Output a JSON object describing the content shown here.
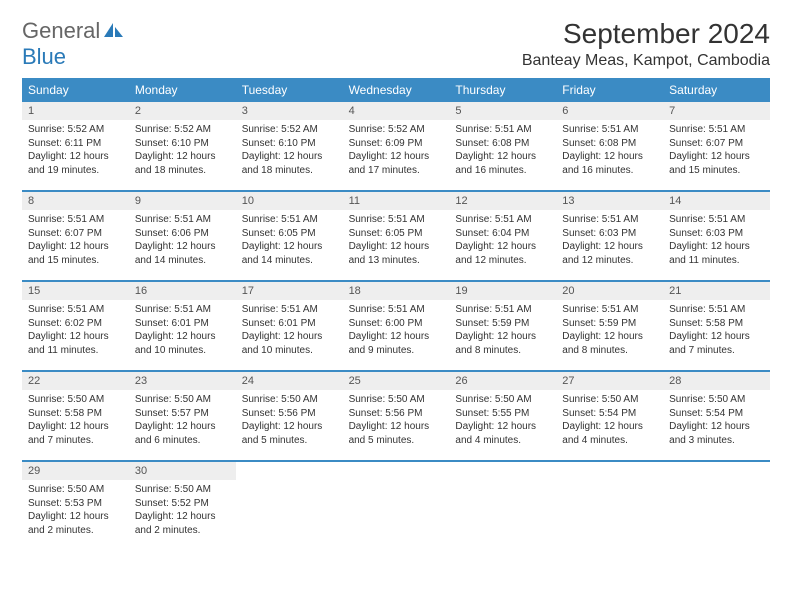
{
  "logo": {
    "text_general": "General",
    "text_blue": "Blue",
    "icon_color": "#2a7ab8"
  },
  "header": {
    "month_title": "September 2024",
    "location": "Banteay Meas, Kampot, Cambodia"
  },
  "styling": {
    "header_bg": "#3b8bc4",
    "header_text": "#ffffff",
    "daynum_bg": "#eeeeee",
    "daynum_text": "#555555",
    "border_color": "#3b8bc4",
    "body_text": "#333333",
    "day_header_fontsize": 12,
    "daynum_fontsize": 11,
    "info_fontsize": 10
  },
  "day_headers": [
    "Sunday",
    "Monday",
    "Tuesday",
    "Wednesday",
    "Thursday",
    "Friday",
    "Saturday"
  ],
  "days": [
    {
      "num": "1",
      "sunrise": "Sunrise: 5:52 AM",
      "sunset": "Sunset: 6:11 PM",
      "daylight1": "Daylight: 12 hours",
      "daylight2": "and 19 minutes."
    },
    {
      "num": "2",
      "sunrise": "Sunrise: 5:52 AM",
      "sunset": "Sunset: 6:10 PM",
      "daylight1": "Daylight: 12 hours",
      "daylight2": "and 18 minutes."
    },
    {
      "num": "3",
      "sunrise": "Sunrise: 5:52 AM",
      "sunset": "Sunset: 6:10 PM",
      "daylight1": "Daylight: 12 hours",
      "daylight2": "and 18 minutes."
    },
    {
      "num": "4",
      "sunrise": "Sunrise: 5:52 AM",
      "sunset": "Sunset: 6:09 PM",
      "daylight1": "Daylight: 12 hours",
      "daylight2": "and 17 minutes."
    },
    {
      "num": "5",
      "sunrise": "Sunrise: 5:51 AM",
      "sunset": "Sunset: 6:08 PM",
      "daylight1": "Daylight: 12 hours",
      "daylight2": "and 16 minutes."
    },
    {
      "num": "6",
      "sunrise": "Sunrise: 5:51 AM",
      "sunset": "Sunset: 6:08 PM",
      "daylight1": "Daylight: 12 hours",
      "daylight2": "and 16 minutes."
    },
    {
      "num": "7",
      "sunrise": "Sunrise: 5:51 AM",
      "sunset": "Sunset: 6:07 PM",
      "daylight1": "Daylight: 12 hours",
      "daylight2": "and 15 minutes."
    },
    {
      "num": "8",
      "sunrise": "Sunrise: 5:51 AM",
      "sunset": "Sunset: 6:07 PM",
      "daylight1": "Daylight: 12 hours",
      "daylight2": "and 15 minutes."
    },
    {
      "num": "9",
      "sunrise": "Sunrise: 5:51 AM",
      "sunset": "Sunset: 6:06 PM",
      "daylight1": "Daylight: 12 hours",
      "daylight2": "and 14 minutes."
    },
    {
      "num": "10",
      "sunrise": "Sunrise: 5:51 AM",
      "sunset": "Sunset: 6:05 PM",
      "daylight1": "Daylight: 12 hours",
      "daylight2": "and 14 minutes."
    },
    {
      "num": "11",
      "sunrise": "Sunrise: 5:51 AM",
      "sunset": "Sunset: 6:05 PM",
      "daylight1": "Daylight: 12 hours",
      "daylight2": "and 13 minutes."
    },
    {
      "num": "12",
      "sunrise": "Sunrise: 5:51 AM",
      "sunset": "Sunset: 6:04 PM",
      "daylight1": "Daylight: 12 hours",
      "daylight2": "and 12 minutes."
    },
    {
      "num": "13",
      "sunrise": "Sunrise: 5:51 AM",
      "sunset": "Sunset: 6:03 PM",
      "daylight1": "Daylight: 12 hours",
      "daylight2": "and 12 minutes."
    },
    {
      "num": "14",
      "sunrise": "Sunrise: 5:51 AM",
      "sunset": "Sunset: 6:03 PM",
      "daylight1": "Daylight: 12 hours",
      "daylight2": "and 11 minutes."
    },
    {
      "num": "15",
      "sunrise": "Sunrise: 5:51 AM",
      "sunset": "Sunset: 6:02 PM",
      "daylight1": "Daylight: 12 hours",
      "daylight2": "and 11 minutes."
    },
    {
      "num": "16",
      "sunrise": "Sunrise: 5:51 AM",
      "sunset": "Sunset: 6:01 PM",
      "daylight1": "Daylight: 12 hours",
      "daylight2": "and 10 minutes."
    },
    {
      "num": "17",
      "sunrise": "Sunrise: 5:51 AM",
      "sunset": "Sunset: 6:01 PM",
      "daylight1": "Daylight: 12 hours",
      "daylight2": "and 10 minutes."
    },
    {
      "num": "18",
      "sunrise": "Sunrise: 5:51 AM",
      "sunset": "Sunset: 6:00 PM",
      "daylight1": "Daylight: 12 hours",
      "daylight2": "and 9 minutes."
    },
    {
      "num": "19",
      "sunrise": "Sunrise: 5:51 AM",
      "sunset": "Sunset: 5:59 PM",
      "daylight1": "Daylight: 12 hours",
      "daylight2": "and 8 minutes."
    },
    {
      "num": "20",
      "sunrise": "Sunrise: 5:51 AM",
      "sunset": "Sunset: 5:59 PM",
      "daylight1": "Daylight: 12 hours",
      "daylight2": "and 8 minutes."
    },
    {
      "num": "21",
      "sunrise": "Sunrise: 5:51 AM",
      "sunset": "Sunset: 5:58 PM",
      "daylight1": "Daylight: 12 hours",
      "daylight2": "and 7 minutes."
    },
    {
      "num": "22",
      "sunrise": "Sunrise: 5:50 AM",
      "sunset": "Sunset: 5:58 PM",
      "daylight1": "Daylight: 12 hours",
      "daylight2": "and 7 minutes."
    },
    {
      "num": "23",
      "sunrise": "Sunrise: 5:50 AM",
      "sunset": "Sunset: 5:57 PM",
      "daylight1": "Daylight: 12 hours",
      "daylight2": "and 6 minutes."
    },
    {
      "num": "24",
      "sunrise": "Sunrise: 5:50 AM",
      "sunset": "Sunset: 5:56 PM",
      "daylight1": "Daylight: 12 hours",
      "daylight2": "and 5 minutes."
    },
    {
      "num": "25",
      "sunrise": "Sunrise: 5:50 AM",
      "sunset": "Sunset: 5:56 PM",
      "daylight1": "Daylight: 12 hours",
      "daylight2": "and 5 minutes."
    },
    {
      "num": "26",
      "sunrise": "Sunrise: 5:50 AM",
      "sunset": "Sunset: 5:55 PM",
      "daylight1": "Daylight: 12 hours",
      "daylight2": "and 4 minutes."
    },
    {
      "num": "27",
      "sunrise": "Sunrise: 5:50 AM",
      "sunset": "Sunset: 5:54 PM",
      "daylight1": "Daylight: 12 hours",
      "daylight2": "and 4 minutes."
    },
    {
      "num": "28",
      "sunrise": "Sunrise: 5:50 AM",
      "sunset": "Sunset: 5:54 PM",
      "daylight1": "Daylight: 12 hours",
      "daylight2": "and 3 minutes."
    },
    {
      "num": "29",
      "sunrise": "Sunrise: 5:50 AM",
      "sunset": "Sunset: 5:53 PM",
      "daylight1": "Daylight: 12 hours",
      "daylight2": "and 2 minutes."
    },
    {
      "num": "30",
      "sunrise": "Sunrise: 5:50 AM",
      "sunset": "Sunset: 5:52 PM",
      "daylight1": "Daylight: 12 hours",
      "daylight2": "and 2 minutes."
    }
  ]
}
